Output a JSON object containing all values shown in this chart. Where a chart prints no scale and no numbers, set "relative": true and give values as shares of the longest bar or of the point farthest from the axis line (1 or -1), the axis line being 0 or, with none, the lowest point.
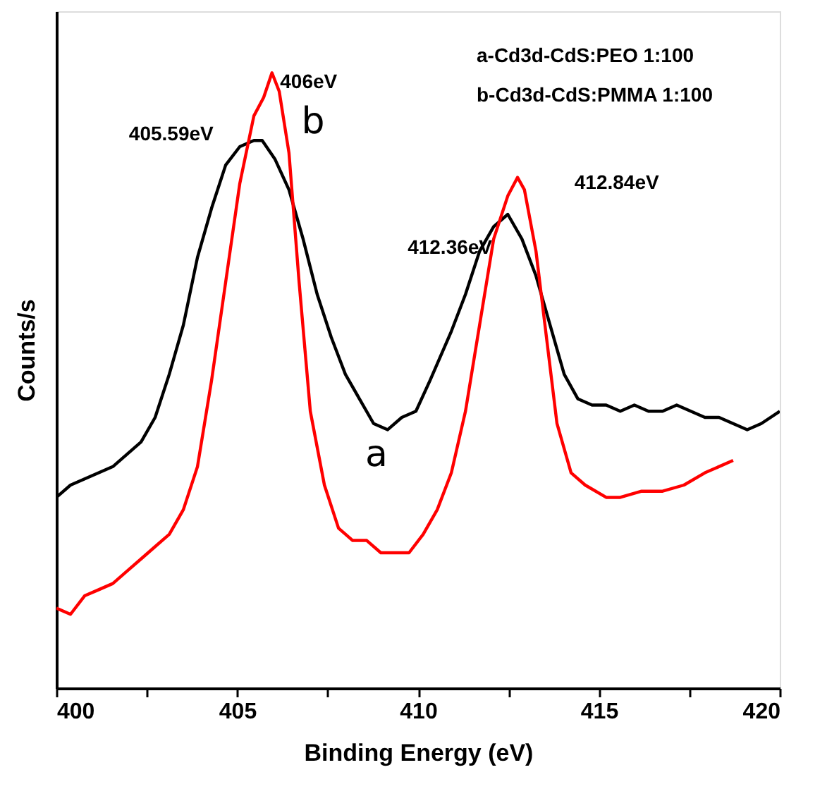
{
  "chart_data": {
    "type": "line",
    "relative": true,
    "xlabel": "Binding Energy (eV)",
    "ylabel": "Counts/s",
    "xlim": [
      400,
      420
    ],
    "xticks": [
      400,
      {
        "value": 402.5,
        "label": null
      },
      405,
      {
        "value": 407.5,
        "label": null
      },
      410,
      {
        "value": 412.5,
        "label": null
      },
      415,
      {
        "value": 417.5,
        "label": null
      },
      420
    ],
    "marker": "none",
    "line_style": "solid",
    "tick_labels": "x",
    "series": [
      {
        "color": "#000000",
        "x": [
          400.0,
          400.39,
          400.78,
          401.17,
          401.56,
          401.95,
          402.34,
          402.73,
          403.12,
          403.51,
          403.9,
          404.29,
          404.68,
          405.07,
          405.46,
          405.69,
          406.04,
          406.43,
          406.82,
          407.21,
          407.6,
          407.99,
          408.38,
          408.77,
          409.16,
          409.55,
          409.94,
          410.33,
          410.92,
          411.31,
          411.7,
          412.09,
          412.48,
          412.87,
          413.26,
          413.65,
          414.04,
          414.42,
          414.81,
          415.2,
          415.59,
          415.98,
          416.37,
          416.76,
          417.15,
          417.54,
          417.93,
          418.32,
          418.71,
          419.1,
          419.49,
          420.0
        ],
        "values": [
          0.31,
          0.33,
          0.34,
          0.35,
          0.36,
          0.38,
          0.4,
          0.44,
          0.51,
          0.59,
          0.7,
          0.78,
          0.85,
          0.88,
          0.89,
          0.89,
          0.86,
          0.81,
          0.73,
          0.64,
          0.57,
          0.51,
          0.47,
          0.43,
          0.42,
          0.44,
          0.45,
          0.5,
          0.58,
          0.64,
          0.71,
          0.75,
          0.77,
          0.73,
          0.67,
          0.59,
          0.51,
          0.47,
          0.46,
          0.46,
          0.45,
          0.46,
          0.45,
          0.45,
          0.46,
          0.45,
          0.44,
          0.44,
          0.43,
          0.42,
          0.43,
          0.45
        ]
      },
      {
        "color": "#ff0000",
        "x": [
          400.0,
          400.39,
          400.78,
          401.17,
          401.56,
          401.95,
          402.34,
          402.73,
          403.12,
          403.51,
          403.9,
          404.29,
          404.68,
          405.07,
          405.46,
          405.73,
          405.96,
          406.16,
          406.43,
          406.71,
          407.02,
          407.41,
          407.8,
          408.19,
          408.58,
          408.97,
          409.36,
          409.75,
          410.14,
          410.53,
          410.92,
          411.31,
          411.7,
          412.09,
          412.48,
          412.75,
          412.94,
          413.26,
          413.57,
          413.84,
          414.23,
          414.62,
          415.2,
          415.59,
          416.18,
          416.76,
          417.35,
          417.93,
          418.71
        ],
        "values": [
          0.13,
          0.12,
          0.15,
          0.16,
          0.17,
          0.19,
          0.21,
          0.23,
          0.25,
          0.29,
          0.36,
          0.5,
          0.66,
          0.82,
          0.93,
          0.96,
          1.0,
          0.97,
          0.87,
          0.66,
          0.45,
          0.33,
          0.26,
          0.24,
          0.24,
          0.22,
          0.22,
          0.22,
          0.25,
          0.29,
          0.35,
          0.45,
          0.59,
          0.73,
          0.8,
          0.83,
          0.81,
          0.71,
          0.56,
          0.43,
          0.35,
          0.33,
          0.31,
          0.31,
          0.32,
          0.32,
          0.33,
          0.35,
          0.37
        ]
      }
    ],
    "annotations": [
      "a-Cd3d-CdS:PEO 1:100",
      "b-Cd3d-CdS:PMMA 1:100",
      {
        "text": "405.59eV",
        "x": 405.59,
        "y": 0.89
      },
      {
        "text": "406eV",
        "x": 405.96,
        "y": 1.0
      },
      {
        "text": "412.36eV",
        "x": 412.36,
        "y": 0.77
      },
      {
        "text": "412.84eV",
        "x": 412.84,
        "y": 0.83
      },
      {
        "text": "a",
        "x": 409.16,
        "y": 0.42
      },
      {
        "text": "b",
        "x": 406.16,
        "y": 0.97
      }
    ]
  }
}
